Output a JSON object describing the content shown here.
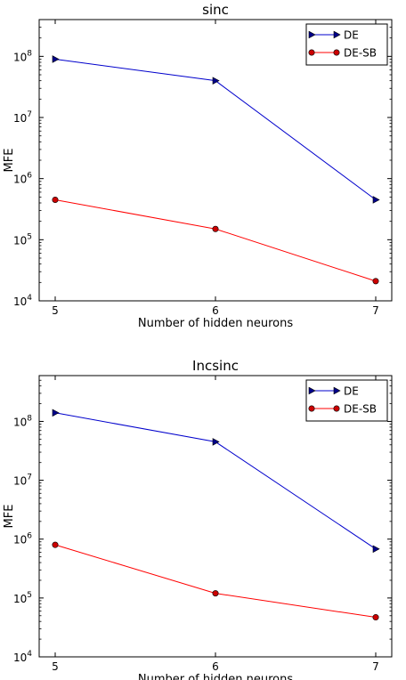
{
  "chart_data": [
    {
      "type": "line",
      "title": "sinc",
      "xlabel": "Number of hidden neurons",
      "ylabel": "MFE",
      "yscale": "log",
      "xlim": [
        4.9,
        7.1
      ],
      "ylim": [
        10000,
        400000000
      ],
      "x": [
        5,
        6,
        7
      ],
      "xtick_labels": [
        "5",
        "6",
        "7"
      ],
      "ytick_labels": [
        {
          "base": "10",
          "exp": "4",
          "value": 10000
        },
        {
          "base": "10",
          "exp": "5",
          "value": 100000
        },
        {
          "base": "10",
          "exp": "6",
          "value": 1000000
        },
        {
          "base": "10",
          "exp": "7",
          "value": 10000000
        },
        {
          "base": "10",
          "exp": "8",
          "value": 100000000
        }
      ],
      "legend_position": "top-right",
      "series": [
        {
          "name": "DE",
          "values": [
            90000000,
            40000000,
            450000
          ],
          "color": "#0000cc",
          "marker": "triangle-right",
          "marker_color": "#00008b"
        },
        {
          "name": "DE-SB",
          "values": [
            450000,
            150000,
            21000
          ],
          "color": "#ff0000",
          "marker": "circle",
          "marker_color": "#cc0000"
        }
      ]
    },
    {
      "type": "line",
      "title": "Incsinc",
      "xlabel": "Number of hidden neurons",
      "ylabel": "MFE",
      "yscale": "log",
      "xlim": [
        4.9,
        7.1
      ],
      "ylim": [
        10000,
        600000000
      ],
      "x": [
        5,
        6,
        7
      ],
      "xtick_labels": [
        "5",
        "6",
        "7"
      ],
      "ytick_labels": [
        {
          "base": "10",
          "exp": "4",
          "value": 10000
        },
        {
          "base": "10",
          "exp": "5",
          "value": 100000
        },
        {
          "base": "10",
          "exp": "6",
          "value": 1000000
        },
        {
          "base": "10",
          "exp": "7",
          "value": 10000000
        },
        {
          "base": "10",
          "exp": "8",
          "value": 100000000
        }
      ],
      "legend_position": "top-right",
      "series": [
        {
          "name": "DE",
          "values": [
            140000000,
            45000000,
            680000
          ],
          "color": "#0000cc",
          "marker": "triangle-right",
          "marker_color": "#00008b"
        },
        {
          "name": "DE-SB",
          "values": [
            800000,
            120000,
            47000
          ],
          "color": "#ff0000",
          "marker": "circle",
          "marker_color": "#cc0000"
        }
      ]
    }
  ]
}
